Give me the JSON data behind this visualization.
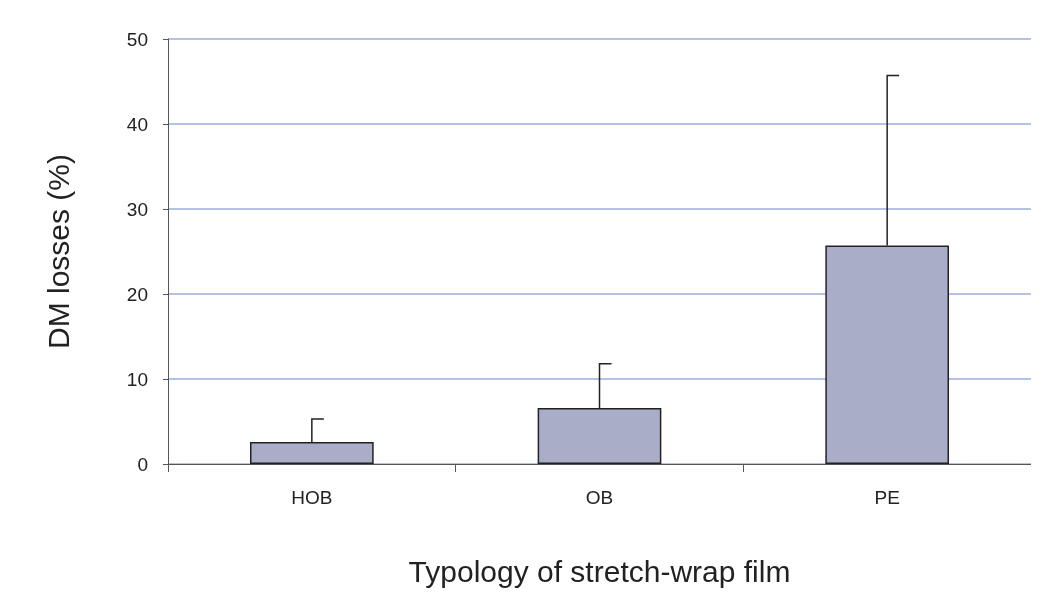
{
  "chart_data": {
    "type": "bar",
    "xlabel": "Typology of stretch-wrap film",
    "ylabel": "DM losses (%)",
    "categories": [
      "HOB",
      "OB",
      "PE"
    ],
    "values": [
      2.6,
      6.6,
      25.7
    ],
    "errors": [
      [
        2.6,
        5.3
      ],
      [
        6.6,
        11.8
      ],
      [
        25.7,
        45.7
      ]
    ],
    "color": "#a9adc8",
    "ylim": [
      0,
      50
    ],
    "yticks": [
      0,
      10,
      20,
      30,
      40,
      50
    ],
    "grid": "y"
  }
}
